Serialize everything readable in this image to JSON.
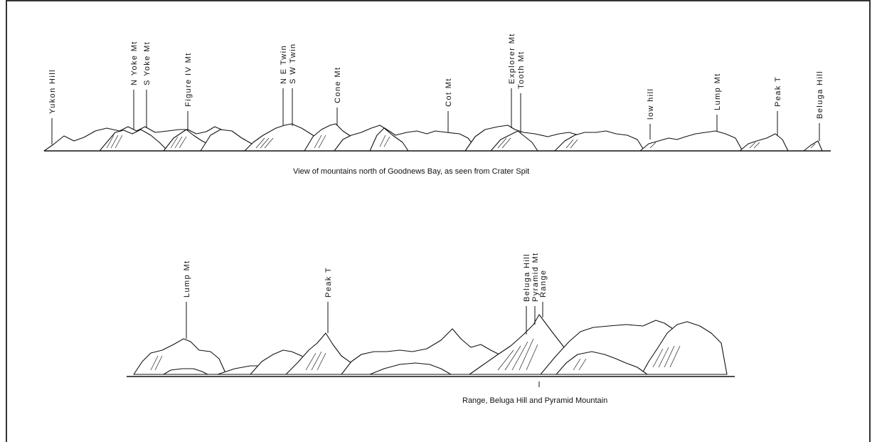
{
  "panels": [
    {
      "caption": "View of mountains north of Goodnews Bay, as seen from Crater Spit",
      "labels": [
        "Yukon Hill",
        "N Yoke Mt",
        "S Yoke Mt",
        "Figure IV Mt",
        "N E Twin",
        "S W Twin",
        "Cone Mt",
        "Cot Mt",
        "Explorer Mt",
        "Tooth Mt",
        "low hill",
        "Lump Mt",
        "Peak T",
        "Beluga Hill"
      ]
    },
    {
      "caption": "Range, Beluga Hill and Pyramid Mountain",
      "labels": [
        "Lump Mt",
        "Peak T",
        "Beluga Hill",
        "Pyramid Mt",
        "Range"
      ]
    }
  ]
}
